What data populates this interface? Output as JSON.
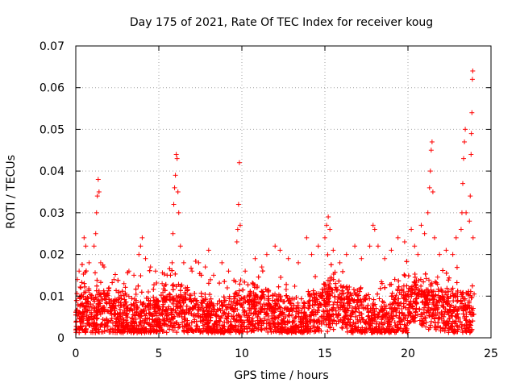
{
  "chart_data": {
    "type": "scatter",
    "title": "Day 175 of 2021, Rate Of TEC Index for receiver koug",
    "xlabel": "GPS time / hours",
    "ylabel": "ROTI / TECUs",
    "xlim": [
      0,
      25
    ],
    "ylim": [
      0,
      0.07
    ],
    "xticks": [
      0,
      5,
      10,
      15,
      20,
      25
    ],
    "xtick_labels": [
      "0",
      "5",
      "10",
      "15",
      "20",
      "25"
    ],
    "yticks": [
      0,
      0.01,
      0.02,
      0.03,
      0.04,
      0.05,
      0.06,
      0.07
    ],
    "ytick_labels": [
      "0",
      "0.01",
      "0.02",
      "0.03",
      "0.04",
      "0.05",
      "0.06",
      "0.07"
    ],
    "grid": true,
    "marker": "+",
    "color": "#ff0000",
    "series": [
      {
        "name": "ROTI",
        "notes": "dense band mostly between 0.002 and 0.015 TECU/min across 0-24 h",
        "points": [
          [
            0.1,
            0.014
          ],
          [
            0.2,
            0.016
          ],
          [
            0.3,
            0.012
          ],
          [
            0.5,
            0.024
          ],
          [
            0.6,
            0.022
          ],
          [
            0.8,
            0.018
          ],
          [
            1.1,
            0.022
          ],
          [
            1.2,
            0.025
          ],
          [
            1.25,
            0.03
          ],
          [
            1.3,
            0.034
          ],
          [
            1.35,
            0.038
          ],
          [
            1.4,
            0.035
          ],
          [
            1.5,
            0.018
          ],
          [
            1.7,
            0.017
          ],
          [
            2.0,
            0.012
          ],
          [
            2.3,
            0.014
          ],
          [
            2.6,
            0.011
          ],
          [
            2.9,
            0.013
          ],
          [
            3.2,
            0.016
          ],
          [
            3.5,
            0.015
          ],
          [
            3.8,
            0.02
          ],
          [
            3.9,
            0.022
          ],
          [
            4.0,
            0.024
          ],
          [
            4.2,
            0.019
          ],
          [
            4.5,
            0.017
          ],
          [
            4.8,
            0.016
          ],
          [
            5.2,
            0.013
          ],
          [
            5.5,
            0.015
          ],
          [
            5.8,
            0.018
          ],
          [
            5.85,
            0.025
          ],
          [
            5.9,
            0.032
          ],
          [
            5.95,
            0.036
          ],
          [
            6.0,
            0.039
          ],
          [
            6.05,
            0.044
          ],
          [
            6.1,
            0.043
          ],
          [
            6.15,
            0.035
          ],
          [
            6.2,
            0.03
          ],
          [
            6.3,
            0.022
          ],
          [
            6.5,
            0.018
          ],
          [
            7.0,
            0.016
          ],
          [
            7.4,
            0.018
          ],
          [
            7.8,
            0.017
          ],
          [
            8.0,
            0.021
          ],
          [
            8.3,
            0.015
          ],
          [
            8.8,
            0.018
          ],
          [
            9.2,
            0.016
          ],
          [
            9.7,
            0.023
          ],
          [
            9.75,
            0.026
          ],
          [
            9.8,
            0.032
          ],
          [
            9.85,
            0.042
          ],
          [
            9.9,
            0.027
          ],
          [
            10.2,
            0.016
          ],
          [
            10.8,
            0.019
          ],
          [
            11.2,
            0.017
          ],
          [
            11.5,
            0.02
          ],
          [
            12.0,
            0.022
          ],
          [
            12.3,
            0.021
          ],
          [
            12.8,
            0.019
          ],
          [
            13.4,
            0.018
          ],
          [
            13.9,
            0.024
          ],
          [
            14.2,
            0.02
          ],
          [
            14.6,
            0.022
          ],
          [
            15.0,
            0.024
          ],
          [
            15.1,
            0.027
          ],
          [
            15.2,
            0.029
          ],
          [
            15.3,
            0.026
          ],
          [
            15.5,
            0.021
          ],
          [
            15.9,
            0.018
          ],
          [
            16.3,
            0.02
          ],
          [
            16.8,
            0.022
          ],
          [
            17.2,
            0.019
          ],
          [
            17.7,
            0.022
          ],
          [
            17.9,
            0.027
          ],
          [
            18.0,
            0.026
          ],
          [
            18.2,
            0.022
          ],
          [
            18.6,
            0.019
          ],
          [
            19.0,
            0.021
          ],
          [
            19.4,
            0.024
          ],
          [
            19.8,
            0.023
          ],
          [
            20.2,
            0.026
          ],
          [
            20.4,
            0.022
          ],
          [
            20.6,
            0.02
          ],
          [
            20.8,
            0.027
          ],
          [
            21.0,
            0.025
          ],
          [
            21.2,
            0.03
          ],
          [
            21.3,
            0.036
          ],
          [
            21.35,
            0.04
          ],
          [
            21.4,
            0.045
          ],
          [
            21.45,
            0.047
          ],
          [
            21.5,
            0.035
          ],
          [
            21.6,
            0.024
          ],
          [
            21.9,
            0.02
          ],
          [
            22.3,
            0.021
          ],
          [
            22.7,
            0.02
          ],
          [
            22.9,
            0.024
          ],
          [
            23.2,
            0.026
          ],
          [
            23.25,
            0.03
          ],
          [
            23.3,
            0.037
          ],
          [
            23.35,
            0.043
          ],
          [
            23.4,
            0.047
          ],
          [
            23.45,
            0.05
          ],
          [
            23.5,
            0.03
          ],
          [
            23.7,
            0.028
          ],
          [
            23.75,
            0.034
          ],
          [
            23.8,
            0.044
          ],
          [
            23.82,
            0.049
          ],
          [
            23.85,
            0.054
          ],
          [
            23.88,
            0.062
          ],
          [
            23.9,
            0.064
          ],
          [
            23.92,
            0.024
          ]
        ]
      }
    ]
  }
}
